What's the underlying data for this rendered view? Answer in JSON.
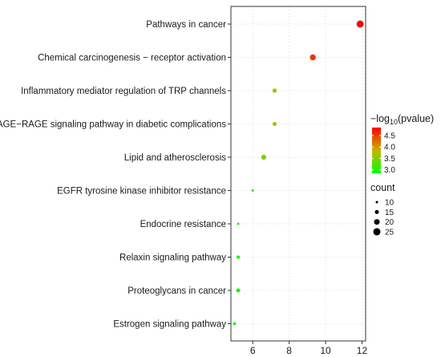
{
  "chart_data": {
    "type": "scatter",
    "title": "",
    "xlabel": "",
    "ylabel": "",
    "xlim": [
      4.8,
      12.2
    ],
    "x_ticks": [
      6,
      8,
      10,
      12
    ],
    "x_tick_labels": [
      "6",
      "8",
      "10",
      "12"
    ],
    "grid": true,
    "categories": [
      "Pathways in cancer",
      "Chemical carcinogenesis − receptor activation",
      "Inflammatory mediator regulation of TRP channels",
      "AGE−RAGE signaling pathway in diabetic complications",
      "Lipid and atherosclerosis",
      "EGFR tyrosine kinase inhibitor resistance",
      "Endocrine resistance",
      "Relaxin signaling pathway",
      "Proteoglycans in cancer",
      "Estrogen signaling pathway"
    ],
    "x": [
      11.9,
      9.3,
      7.2,
      7.2,
      6.6,
      6.0,
      5.2,
      5.2,
      5.2,
      5.0
    ],
    "count": [
      25,
      21,
      16,
      15,
      18,
      10,
      10,
      13,
      15,
      12
    ],
    "neg_log10_pvalue": [
      4.8,
      4.55,
      3.7,
      3.55,
      3.5,
      3.05,
      2.95,
      2.9,
      2.9,
      2.85
    ],
    "color_legend": {
      "title_main": "−log",
      "title_sub": "10",
      "title_rest": "(pvalue)",
      "range": [
        2.85,
        4.85
      ],
      "ticks": [
        4.5,
        4.0,
        3.5,
        3.0
      ],
      "tick_labels": [
        "4.5",
        "4.0",
        "3.5",
        "3.0"
      ],
      "low_color": "#00ff00",
      "mid_color": "#c8b400",
      "high_color": "#ff0000"
    },
    "size_legend": {
      "title": "count",
      "values": [
        10,
        15,
        20,
        25
      ],
      "labels": [
        "10",
        "15",
        "20",
        "25"
      ]
    }
  }
}
